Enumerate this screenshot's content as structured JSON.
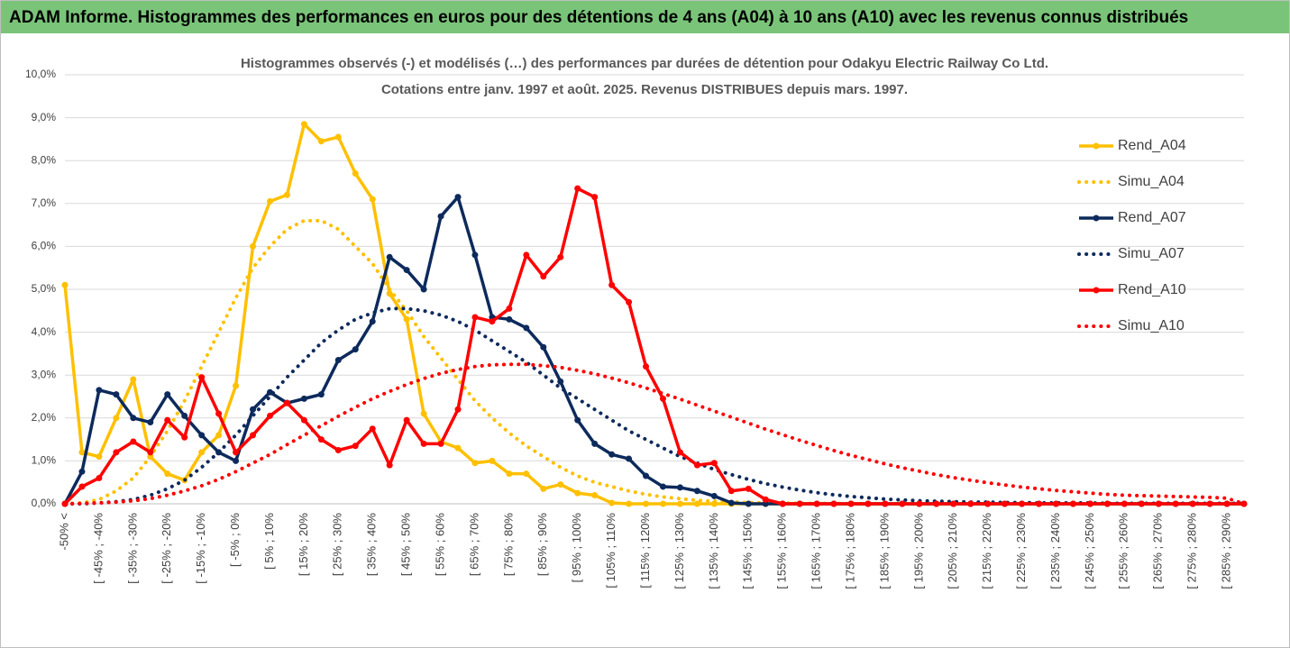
{
  "header": {
    "title": "ADAM Informe. Histogrammes des performances en euros pour des détentions de 4 ans (A04) à 10 ans (A10) avec les revenus connus distribués"
  },
  "chart_data": {
    "type": "line",
    "title": "Histogrammes observés (-) et modélisés (…) des performances par durées de détention pour Odakyu Electric Railway Co Ltd.",
    "subtitle": "Cotations entre janv. 1997 et août. 2025. Revenus DISTRIBUES depuis mars. 1997.",
    "categories": [
      "-50% <",
      null,
      "[ -45% ; -40%",
      null,
      "[ -35% ; -30%",
      null,
      "[ -25% ; -20%",
      null,
      "[ -15% ; -10%",
      null,
      "[ -5% ; 0%",
      null,
      "[ 5% ; 10%",
      null,
      "[ 15% ; 20%",
      null,
      "[ 25% ; 30%",
      null,
      "[ 35% ; 40%",
      null,
      "[ 45% ; 50%",
      null,
      "[ 55% ; 60%",
      null,
      "[ 65% ; 70%",
      null,
      "[ 75% ; 80%",
      null,
      "[ 85% ; 90%",
      null,
      "[ 95% ; 100%",
      null,
      "[ 105% ; 110%",
      null,
      "[ 115% ; 120%",
      null,
      "[ 125% ; 130%",
      null,
      "[ 135% ; 140%",
      null,
      "[ 145% ; 150%",
      null,
      "[ 155% ; 160%",
      null,
      "[ 165% ; 170%",
      null,
      "[ 175% ; 180%",
      null,
      "[ 185% ; 190%",
      null,
      "[ 195% ; 200%",
      null,
      "[ 205% ; 210%",
      null,
      "[ 215% ; 220%",
      null,
      "[ 225% ; 230%",
      null,
      "[ 235% ; 240%",
      null,
      "[ 245% ; 250%",
      null,
      "[ 255% ; 260%",
      null,
      "[ 265% ; 270%",
      null,
      "[ 275% ; 280%",
      null,
      "[ 285% ; 290%",
      null
    ],
    "ylim": [
      0,
      10
    ],
    "yticks": [
      {
        "value": 0,
        "label": "0,0%"
      },
      {
        "value": 1,
        "label": "1,0%"
      },
      {
        "value": 2,
        "label": "2,0%"
      },
      {
        "value": 3,
        "label": "3,0%"
      },
      {
        "value": 4,
        "label": "4,0%"
      },
      {
        "value": 5,
        "label": "5,0%"
      },
      {
        "value": 6,
        "label": "6,0%"
      },
      {
        "value": 7,
        "label": "7,0%"
      },
      {
        "value": 8,
        "label": "8,0%"
      },
      {
        "value": 9,
        "label": "9,0%"
      },
      {
        "value": 10,
        "label": "10,0%"
      }
    ],
    "grid": true,
    "legend": "right",
    "series": [
      {
        "name": "Rend_A04",
        "color": "#ffc000",
        "line_style": "solid",
        "markers": true,
        "values": [
          5.1,
          1.2,
          1.1,
          2.0,
          2.9,
          1.1,
          0.7,
          0.55,
          1.2,
          1.6,
          2.75,
          6.0,
          7.05,
          7.2,
          8.85,
          8.45,
          8.55,
          7.7,
          7.1,
          4.9,
          4.3,
          2.1,
          1.45,
          1.3,
          0.95,
          1.0,
          0.7,
          0.7,
          0.35,
          0.45,
          0.25,
          0.2,
          0.02,
          0,
          0,
          0,
          0,
          0,
          0,
          0,
          0,
          0,
          0,
          0,
          0,
          0,
          0,
          0,
          0,
          0,
          0,
          0,
          0,
          0,
          0,
          0,
          0,
          0,
          0,
          0,
          0,
          0,
          0,
          0,
          0,
          0,
          0,
          0,
          0,
          0
        ]
      },
      {
        "name": "Simu_A04",
        "color": "#ffc000",
        "line_style": "dotted",
        "markers": false,
        "values": [
          0,
          0.02,
          0.1,
          0.3,
          0.6,
          1.1,
          1.7,
          2.4,
          3.2,
          4.0,
          4.8,
          5.5,
          6.0,
          6.4,
          6.6,
          6.6,
          6.4,
          6.0,
          5.6,
          5.0,
          4.5,
          3.9,
          3.4,
          2.9,
          2.4,
          2.0,
          1.65,
          1.35,
          1.1,
          0.85,
          0.65,
          0.5,
          0.4,
          0.3,
          0.22,
          0.16,
          0.12,
          0.08,
          0.06,
          0.04,
          0.03,
          0.02,
          0.02,
          0.01,
          0.01,
          0.01,
          0,
          0,
          0,
          0,
          0,
          0,
          0,
          0,
          0,
          0,
          0,
          0,
          0,
          0,
          0,
          0,
          0,
          0,
          0,
          0,
          0,
          0,
          0,
          0
        ]
      },
      {
        "name": "Rend_A07",
        "color": "#0d2a5c",
        "line_style": "solid",
        "markers": true,
        "values": [
          0,
          0.75,
          2.65,
          2.55,
          2.0,
          1.9,
          2.55,
          2.05,
          1.6,
          1.2,
          1.0,
          2.2,
          2.6,
          2.35,
          2.45,
          2.55,
          3.35,
          3.6,
          4.25,
          5.75,
          5.45,
          5.0,
          6.7,
          7.15,
          5.8,
          4.35,
          4.3,
          4.1,
          3.65,
          2.85,
          1.95,
          1.4,
          1.15,
          1.05,
          0.65,
          0.4,
          0.38,
          0.3,
          0.18,
          0.02,
          0,
          0,
          0,
          0,
          0,
          0,
          0,
          0,
          0,
          0,
          0,
          0,
          0,
          0,
          0,
          0,
          0,
          0,
          0,
          0,
          0,
          0,
          0,
          0,
          0,
          0,
          0,
          0,
          0,
          0
        ]
      },
      {
        "name": "Simu_A07",
        "color": "#0d2a5c",
        "line_style": "dotted",
        "markers": false,
        "values": [
          0,
          0,
          0.02,
          0.05,
          0.1,
          0.2,
          0.35,
          0.55,
          0.85,
          1.2,
          1.6,
          2.05,
          2.5,
          2.95,
          3.35,
          3.75,
          4.05,
          4.3,
          4.45,
          4.55,
          4.55,
          4.5,
          4.4,
          4.25,
          4.05,
          3.8,
          3.55,
          3.3,
          3.0,
          2.7,
          2.45,
          2.2,
          1.95,
          1.7,
          1.5,
          1.3,
          1.1,
          0.95,
          0.8,
          0.68,
          0.57,
          0.47,
          0.39,
          0.32,
          0.26,
          0.21,
          0.17,
          0.14,
          0.11,
          0.09,
          0.07,
          0.06,
          0.05,
          0.04,
          0.04,
          0.03,
          0.03,
          0.02,
          0.02,
          0.02,
          0.02,
          0.01,
          0.01,
          0.01,
          0.01,
          0.01,
          0.01,
          0.01,
          0.01,
          0.01
        ]
      },
      {
        "name": "Rend_A10",
        "color": "#ff0000",
        "line_style": "solid",
        "markers": true,
        "values": [
          0,
          0.4,
          0.6,
          1.2,
          1.45,
          1.2,
          1.95,
          1.55,
          2.95,
          2.1,
          1.2,
          1.6,
          2.05,
          2.35,
          1.95,
          1.5,
          1.25,
          1.35,
          1.75,
          0.9,
          1.95,
          1.4,
          1.4,
          2.2,
          4.35,
          4.25,
          4.55,
          5.8,
          5.3,
          5.75,
          7.35,
          7.15,
          5.1,
          4.7,
          3.2,
          2.45,
          1.2,
          0.9,
          0.95,
          0.3,
          0.35,
          0.1,
          0,
          0,
          0,
          0,
          0,
          0,
          0,
          0,
          0,
          0,
          0,
          0,
          0,
          0,
          0,
          0,
          0,
          0,
          0,
          0,
          0,
          0,
          0,
          0,
          0,
          0,
          0,
          0
        ]
      },
      {
        "name": "Simu_A10",
        "color": "#ff0000",
        "line_style": "dotted",
        "markers": false,
        "values": [
          0,
          0.01,
          0.02,
          0.04,
          0.07,
          0.12,
          0.2,
          0.3,
          0.42,
          0.57,
          0.75,
          0.95,
          1.15,
          1.38,
          1.6,
          1.82,
          2.04,
          2.25,
          2.45,
          2.62,
          2.78,
          2.92,
          3.04,
          3.13,
          3.2,
          3.24,
          3.25,
          3.25,
          3.22,
          3.18,
          3.11,
          3.03,
          2.93,
          2.82,
          2.7,
          2.57,
          2.44,
          2.3,
          2.16,
          2.02,
          1.88,
          1.74,
          1.61,
          1.48,
          1.36,
          1.24,
          1.13,
          1.03,
          0.93,
          0.84,
          0.76,
          0.68,
          0.61,
          0.55,
          0.49,
          0.44,
          0.39,
          0.35,
          0.31,
          0.28,
          0.25,
          0.22,
          0.2,
          0.19,
          0.18,
          0.17,
          0.16,
          0.15,
          0.13,
          0
        ]
      }
    ]
  }
}
